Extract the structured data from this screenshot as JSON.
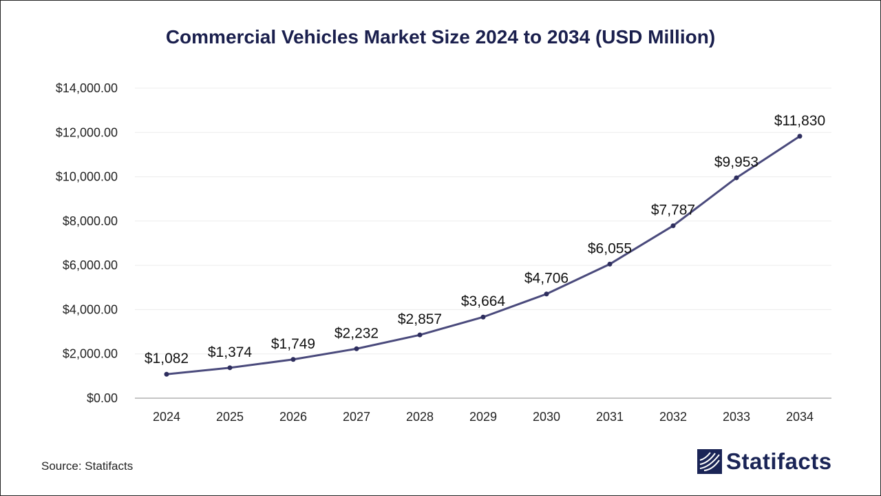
{
  "chart_data": {
    "type": "line",
    "title": "Commercial Vehicles Market Size 2024 to 2034 (USD Million)",
    "xlabel": "",
    "ylabel": "",
    "categories": [
      "2024",
      "2025",
      "2026",
      "2027",
      "2028",
      "2029",
      "2030",
      "2031",
      "2032",
      "2033",
      "2034"
    ],
    "values": [
      1082,
      1374,
      1749,
      2232,
      2857,
      3664,
      4706,
      6055,
      7787,
      9953,
      11830
    ],
    "data_labels": [
      "$1,082",
      "$1,374",
      "$1,749",
      "$2,232",
      "$2,857",
      "$3,664",
      "$4,706",
      "$6,055",
      "$7,787",
      "$9,953",
      "$11,830"
    ],
    "ylim": [
      0,
      14000
    ],
    "yticks": [
      0,
      2000,
      4000,
      6000,
      8000,
      10000,
      12000,
      14000
    ],
    "ytick_labels": [
      "$0.00",
      "$2,000.00",
      "$4,000.00",
      "$6,000.00",
      "$8,000.00",
      "$10,000.00",
      "$12,000.00",
      "$14,000.00"
    ],
    "grid": true,
    "colors": {
      "line": "#4a4a7c",
      "marker": "#2e2e5e",
      "grid": "#ececec",
      "axis": "#b0b0b0",
      "title": "#1a1f4d"
    }
  },
  "footer": {
    "source": "Source: Statifacts",
    "brand": "Statifacts",
    "brand_icon": "statifacts-logo-icon"
  }
}
